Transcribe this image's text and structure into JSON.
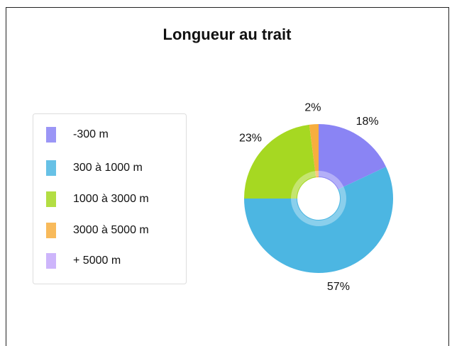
{
  "chart_data": {
    "type": "pie",
    "title": "Longueur au trait",
    "categories": [
      "-300 m",
      "300 à 1000 m",
      "1000 à 3000 m",
      "3000 à 5000 m",
      "+ 5000 m"
    ],
    "values": [
      18,
      57,
      23,
      2,
      0
    ],
    "value_labels": [
      "18%",
      "57%",
      "23%",
      "2%",
      null
    ],
    "colors": [
      "#8a84f4",
      "#4cb6e2",
      "#a6d822",
      "#f7ae3e",
      "#c4a8fa"
    ],
    "donut": true,
    "legend": "left"
  }
}
